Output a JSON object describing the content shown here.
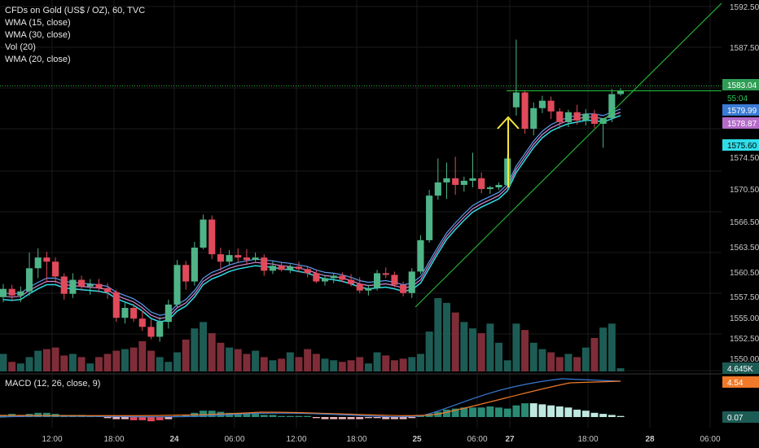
{
  "legend": {
    "title": "CFDs on Gold (US$ / OZ), 60, TVC",
    "items": [
      "WMA (15, close)",
      "WMA (30, close)",
      "Vol (20)",
      "WMA (20, close)"
    ]
  },
  "macd_legend": "MACD (12, 26, close, 9)",
  "colors": {
    "up": "#4fb487",
    "down": "#e04a5b",
    "vol_up": "#1d5c55",
    "vol_down": "#7e2d38",
    "wma15": "#5b9cf0",
    "wma30": "#d28ad9",
    "wma20": "#2fdde8",
    "trendline": "#27c43a",
    "arrow": "#f5e63c",
    "macd_line": "#3a7bd5",
    "signal_line": "#f07a2a",
    "grid": "#1a1a1a"
  },
  "price_axis": {
    "ticks": [
      "1592.50",
      "1587.50",
      "1583.04",
      "1579.99",
      "1578.87",
      "1575.60",
      "1574.50",
      "1570.50",
      "1566.50",
      "1563.50",
      "1560.50",
      "1557.50",
      "1555.00",
      "1552.50",
      "1550.00"
    ],
    "tags": [
      {
        "label": "1583.04",
        "color": "#2f9e55",
        "text_color": "#ffffff"
      },
      {
        "label": "55:04",
        "color": "#000000",
        "text_color": "#2fc35a"
      },
      {
        "label": "1579.99",
        "color": "#3a7bd5",
        "text_color": "#ffffff"
      },
      {
        "label": "1578.87",
        "color": "#b56bc9",
        "text_color": "#ffffff"
      },
      {
        "label": "1575.60",
        "color": "#2fdde8",
        "text_color": "#000000"
      },
      {
        "label": "4.645K",
        "color": "#1d5c55",
        "text_color": "#ffffff"
      }
    ]
  },
  "macd_axis": {
    "tags": [
      {
        "label": "4.54",
        "color": "#f07a2a",
        "text_color": "#ffffff"
      },
      {
        "label": "0.07",
        "color": "#1d5c55",
        "text_color": "#ffffff"
      }
    ]
  },
  "time_axis": [
    "12:00",
    "18:00",
    "24",
    "06:00",
    "12:00",
    "18:00",
    "25",
    "06:00",
    "27",
    "18:00",
    "28",
    "06:00"
  ],
  "chart_data": {
    "type": "candlestick",
    "symbol": "CFDs on Gold (US$ / OZ), 60, TVC",
    "ylim": [
      1549,
      1594
    ],
    "candles": [
      {
        "o": 1558.0,
        "h": 1559.6,
        "l": 1557.4,
        "c": 1559.0
      },
      {
        "o": 1559.0,
        "h": 1559.5,
        "l": 1557.5,
        "c": 1558.2
      },
      {
        "o": 1558.2,
        "h": 1559.3,
        "l": 1557.4,
        "c": 1558.7
      },
      {
        "o": 1558.7,
        "h": 1563.4,
        "l": 1558.2,
        "c": 1561.5
      },
      {
        "o": 1561.5,
        "h": 1563.9,
        "l": 1560.3,
        "c": 1562.8
      },
      {
        "o": 1562.8,
        "h": 1563.5,
        "l": 1559.8,
        "c": 1562.3
      },
      {
        "o": 1562.3,
        "h": 1562.8,
        "l": 1559.7,
        "c": 1560.5
      },
      {
        "o": 1560.5,
        "h": 1560.9,
        "l": 1557.7,
        "c": 1558.4
      },
      {
        "o": 1558.4,
        "h": 1560.9,
        "l": 1557.9,
        "c": 1560.1
      },
      {
        "o": 1560.1,
        "h": 1560.6,
        "l": 1558.8,
        "c": 1559.3
      },
      {
        "o": 1559.3,
        "h": 1560.2,
        "l": 1558.3,
        "c": 1559.6
      },
      {
        "o": 1559.6,
        "h": 1560.2,
        "l": 1558.6,
        "c": 1559.1
      },
      {
        "o": 1559.1,
        "h": 1559.7,
        "l": 1557.8,
        "c": 1558.6
      },
      {
        "o": 1558.6,
        "h": 1558.9,
        "l": 1555.0,
        "c": 1555.5
      },
      {
        "o": 1555.5,
        "h": 1557.3,
        "l": 1554.8,
        "c": 1556.7
      },
      {
        "o": 1556.7,
        "h": 1557.2,
        "l": 1555.0,
        "c": 1555.4
      },
      {
        "o": 1555.4,
        "h": 1556.4,
        "l": 1553.9,
        "c": 1554.4
      },
      {
        "o": 1554.4,
        "h": 1555.3,
        "l": 1552.9,
        "c": 1553.2
      },
      {
        "o": 1553.2,
        "h": 1555.6,
        "l": 1552.6,
        "c": 1555.0
      },
      {
        "o": 1555.0,
        "h": 1557.7,
        "l": 1554.2,
        "c": 1557.1
      },
      {
        "o": 1557.1,
        "h": 1562.5,
        "l": 1556.8,
        "c": 1561.9
      },
      {
        "o": 1561.9,
        "h": 1562.4,
        "l": 1558.9,
        "c": 1559.9
      },
      {
        "o": 1559.9,
        "h": 1564.7,
        "l": 1559.4,
        "c": 1564.0
      },
      {
        "o": 1564.0,
        "h": 1568.0,
        "l": 1563.8,
        "c": 1567.4
      },
      {
        "o": 1567.4,
        "h": 1567.9,
        "l": 1562.6,
        "c": 1563.2
      },
      {
        "o": 1563.2,
        "h": 1564.0,
        "l": 1561.2,
        "c": 1562.3
      },
      {
        "o": 1562.3,
        "h": 1563.7,
        "l": 1561.8,
        "c": 1563.1
      },
      {
        "o": 1563.1,
        "h": 1563.9,
        "l": 1562.2,
        "c": 1562.8
      },
      {
        "o": 1562.8,
        "h": 1563.8,
        "l": 1561.9,
        "c": 1562.5
      },
      {
        "o": 1562.5,
        "h": 1563.4,
        "l": 1562.3,
        "c": 1562.8
      },
      {
        "o": 1562.8,
        "h": 1563.2,
        "l": 1560.6,
        "c": 1561.2
      },
      {
        "o": 1561.2,
        "h": 1562.4,
        "l": 1560.8,
        "c": 1561.8
      },
      {
        "o": 1561.8,
        "h": 1562.3,
        "l": 1561.1,
        "c": 1561.3
      },
      {
        "o": 1561.3,
        "h": 1562.0,
        "l": 1560.9,
        "c": 1561.7
      },
      {
        "o": 1561.7,
        "h": 1562.3,
        "l": 1561.0,
        "c": 1561.4
      },
      {
        "o": 1561.4,
        "h": 1561.8,
        "l": 1560.4,
        "c": 1560.9
      },
      {
        "o": 1560.9,
        "h": 1561.3,
        "l": 1559.7,
        "c": 1559.9
      },
      {
        "o": 1559.9,
        "h": 1560.7,
        "l": 1559.4,
        "c": 1560.3
      },
      {
        "o": 1560.3,
        "h": 1560.9,
        "l": 1559.7,
        "c": 1560.6
      },
      {
        "o": 1560.6,
        "h": 1561.0,
        "l": 1559.8,
        "c": 1560.1
      },
      {
        "o": 1560.1,
        "h": 1560.8,
        "l": 1559.3,
        "c": 1559.6
      },
      {
        "o": 1559.6,
        "h": 1560.4,
        "l": 1558.5,
        "c": 1558.8
      },
      {
        "o": 1558.8,
        "h": 1559.5,
        "l": 1558.2,
        "c": 1559.1
      },
      {
        "o": 1559.1,
        "h": 1561.3,
        "l": 1558.8,
        "c": 1560.9
      },
      {
        "o": 1560.9,
        "h": 1561.6,
        "l": 1560.3,
        "c": 1560.7
      },
      {
        "o": 1560.7,
        "h": 1561.1,
        "l": 1559.2,
        "c": 1559.5
      },
      {
        "o": 1559.5,
        "h": 1559.9,
        "l": 1558.1,
        "c": 1558.5
      },
      {
        "o": 1558.5,
        "h": 1561.5,
        "l": 1557.9,
        "c": 1561.1
      },
      {
        "o": 1561.1,
        "h": 1565.5,
        "l": 1560.8,
        "c": 1564.9
      },
      {
        "o": 1564.9,
        "h": 1571.0,
        "l": 1564.6,
        "c": 1570.3
      },
      {
        "o": 1570.3,
        "h": 1574.8,
        "l": 1569.8,
        "c": 1571.9
      },
      {
        "o": 1571.9,
        "h": 1574.3,
        "l": 1569.9,
        "c": 1572.4
      },
      {
        "o": 1572.4,
        "h": 1575.0,
        "l": 1570.4,
        "c": 1571.6
      },
      {
        "o": 1571.6,
        "h": 1572.6,
        "l": 1570.8,
        "c": 1572.1
      },
      {
        "o": 1572.1,
        "h": 1575.5,
        "l": 1571.3,
        "c": 1572.4
      },
      {
        "o": 1572.4,
        "h": 1573.1,
        "l": 1570.6,
        "c": 1571.1
      },
      {
        "o": 1571.1,
        "h": 1571.5,
        "l": 1570.5,
        "c": 1571.3
      },
      {
        "o": 1571.3,
        "h": 1571.9,
        "l": 1571.0,
        "c": 1571.6
      },
      {
        "o": 1571.6,
        "h": 1575.3,
        "l": 1571.3,
        "c": 1574.8
      },
      {
        "o": 1581.0,
        "h": 1589.2,
        "l": 1580.0,
        "c": 1582.8
      },
      {
        "o": 1582.8,
        "h": 1583.0,
        "l": 1577.8,
        "c": 1578.4
      },
      {
        "o": 1578.4,
        "h": 1581.6,
        "l": 1577.6,
        "c": 1580.9
      },
      {
        "o": 1580.9,
        "h": 1582.4,
        "l": 1580.3,
        "c": 1581.8
      },
      {
        "o": 1581.8,
        "h": 1582.3,
        "l": 1579.6,
        "c": 1580.5
      },
      {
        "o": 1580.5,
        "h": 1580.9,
        "l": 1578.4,
        "c": 1579.2
      },
      {
        "o": 1579.2,
        "h": 1580.7,
        "l": 1578.6,
        "c": 1580.4
      },
      {
        "o": 1580.4,
        "h": 1581.3,
        "l": 1578.9,
        "c": 1579.4
      },
      {
        "o": 1579.4,
        "h": 1580.8,
        "l": 1578.8,
        "c": 1580.2
      },
      {
        "o": 1580.2,
        "h": 1580.7,
        "l": 1578.5,
        "c": 1579.0
      },
      {
        "o": 1579.0,
        "h": 1579.7,
        "l": 1576.1,
        "c": 1579.7
      },
      {
        "o": 1579.7,
        "h": 1583.2,
        "l": 1579.2,
        "c": 1582.6
      },
      {
        "o": 1582.6,
        "h": 1583.3,
        "l": 1582.4,
        "c": 1583.0
      }
    ],
    "volume": [
      22,
      12,
      10,
      18,
      26,
      28,
      30,
      20,
      22,
      18,
      10,
      18,
      22,
      26,
      28,
      30,
      38,
      26,
      18,
      12,
      24,
      40,
      54,
      62,
      48,
      36,
      30,
      28,
      22,
      26,
      18,
      14,
      16,
      24,
      18,
      28,
      22,
      16,
      14,
      12,
      14,
      18,
      10,
      24,
      20,
      14,
      16,
      18,
      22,
      50,
      92,
      86,
      74,
      62,
      54,
      48,
      60,
      36,
      14,
      60,
      52,
      36,
      28,
      24,
      18,
      22,
      18,
      30,
      42,
      55,
      60,
      4
    ],
    "wma15": [
      1558.5,
      1558.4,
      1558.5,
      1559.2,
      1559.8,
      1560.3,
      1560.3,
      1559.9,
      1559.8,
      1559.7,
      1559.6,
      1559.5,
      1559.3,
      1558.6,
      1558.2,
      1557.8,
      1557.1,
      1556.2,
      1555.8,
      1556.0,
      1557.1,
      1557.7,
      1558.8,
      1560.3,
      1561.0,
      1561.4,
      1561.9,
      1562.2,
      1562.4,
      1562.6,
      1562.5,
      1562.4,
      1562.2,
      1562.1,
      1561.9,
      1561.7,
      1561.3,
      1561.0,
      1560.9,
      1560.7,
      1560.4,
      1560.0,
      1559.8,
      1559.9,
      1560.0,
      1559.8,
      1559.5,
      1559.7,
      1560.5,
      1562.3,
      1564.1,
      1565.8,
      1567.0,
      1568.1,
      1569.1,
      1569.7,
      1570.2,
      1570.7,
      1571.7,
      1573.9,
      1575.4,
      1576.9,
      1578.1,
      1578.9,
      1579.4,
      1579.8,
      1580.0,
      1580.2,
      1580.2,
      1580.0,
      1580.4,
      1580.8
    ]
  }
}
